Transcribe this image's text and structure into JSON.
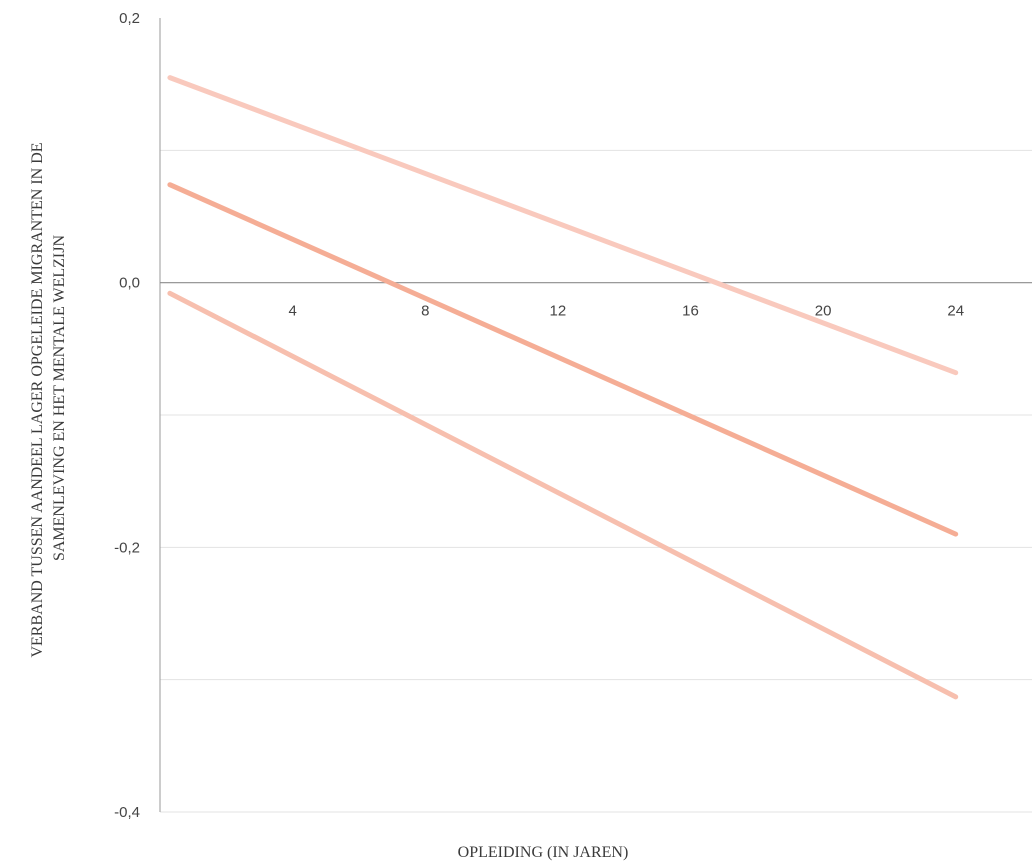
{
  "chart_data": {
    "type": "line",
    "title": "",
    "xlabel": "OPLEIDING (IN JAREN)",
    "ylabel_lines": [
      "VERBAND TUSSEN AANDEEL LAGER OPGELEIDE MIGRANTEN IN DE",
      "SAMENLEVING EN HET MENTALE WELZIJN"
    ],
    "xlim": [
      0,
      26.3
    ],
    "ylim": [
      -0.4,
      0.2
    ],
    "x_ticks": [
      4,
      8,
      12,
      16,
      20,
      24
    ],
    "x_tick_labels": [
      "4",
      "8",
      "12",
      "16",
      "20",
      "24"
    ],
    "y_ticks": [
      0.2,
      0.0,
      -0.2,
      -0.4
    ],
    "y_tick_labels": [
      "0,2",
      "0,0",
      "-0,2",
      "-0,4"
    ],
    "y_gridlines": [
      0.1,
      -0.1,
      -0.2,
      -0.3,
      -0.4
    ],
    "x_axis_at_y": 0.0,
    "series": [
      {
        "x": [
          0.3,
          24
        ],
        "values": [
          0.155,
          -0.068
        ],
        "color": "#f9c9bd"
      },
      {
        "x": [
          0.3,
          24
        ],
        "values": [
          0.074,
          -0.19
        ],
        "color": "#f5ad95"
      },
      {
        "x": [
          0.3,
          24
        ],
        "values": [
          -0.008,
          -0.313
        ],
        "color": "#f7bfae"
      }
    ]
  }
}
